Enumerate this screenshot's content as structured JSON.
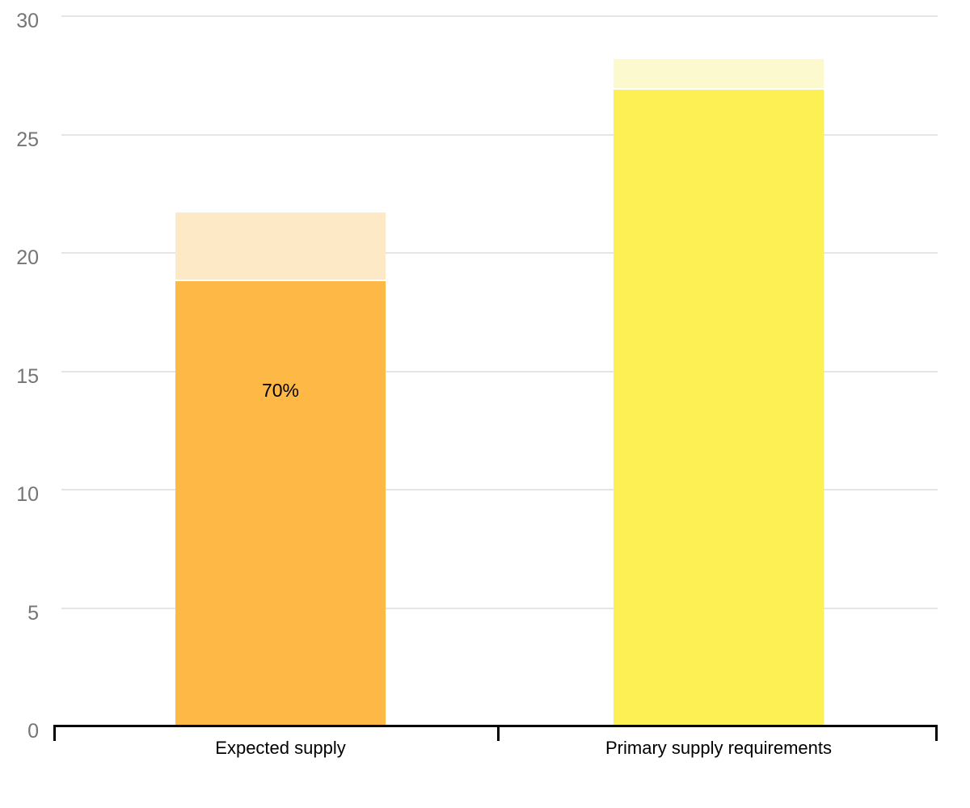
{
  "chart_data": {
    "type": "bar",
    "stacked": true,
    "title": "",
    "xlabel": "",
    "ylabel": "",
    "ylim": [
      0,
      30
    ],
    "yticks": [
      0,
      5,
      10,
      15,
      20,
      25,
      30
    ],
    "ytick_labels": [
      "0",
      "5",
      "10",
      "15",
      "20",
      "25",
      "30"
    ],
    "grid": true,
    "legend": false,
    "categories": [
      "Expected supply",
      "Primary supply requirements"
    ],
    "bars": [
      {
        "category": "Expected supply",
        "total": 21.7,
        "segments": [
          {
            "value": 18.8,
            "color": "#FDB845",
            "label": "70%"
          },
          {
            "value": 2.9,
            "color": "#FEE9C7"
          }
        ]
      },
      {
        "category": "Primary supply requirements",
        "total": 28.2,
        "segments": [
          {
            "value": 26.9,
            "color": "#FDF055"
          },
          {
            "value": 1.3,
            "color": "#FCF9CE"
          }
        ]
      }
    ]
  },
  "colors": {
    "background": "#FFFFFF",
    "gridline": "#E5E5E5",
    "axis": "#000000",
    "y_tick_label": "#757575",
    "category_label": "#000000",
    "bar_label": "#000000",
    "segment_gap": "#FFFFFF"
  }
}
